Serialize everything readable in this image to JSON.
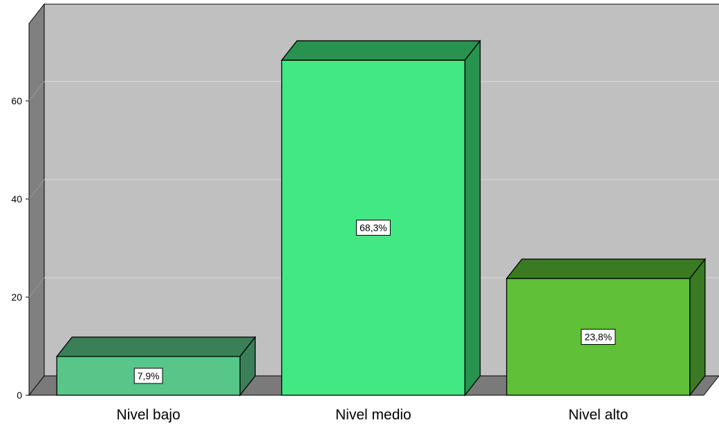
{
  "chart_data": {
    "type": "bar",
    "categories": [
      "Nivel bajo",
      "Nivel medio",
      "Nivel alto"
    ],
    "values": [
      7.9,
      68.3,
      23.8
    ],
    "data_labels": [
      "7,9%",
      "68,3%",
      "23,8%"
    ],
    "ylim": [
      0,
      70
    ],
    "yticks": [
      0,
      20,
      40,
      60
    ],
    "ytick_labels": [
      "0",
      "20",
      "40",
      "60"
    ],
    "grid": true,
    "three_d": true,
    "colors": {
      "back_wall": "#c0c0c0",
      "left_wall": "#808080",
      "floor": "#7a7a7a",
      "gridline": "#dddddd",
      "bars": [
        {
          "front": "#58c688",
          "top": "#3a7f58",
          "side": "#3a7f58"
        },
        {
          "front": "#42e882",
          "top": "#28934f",
          "side": "#28934f"
        },
        {
          "front": "#60c038",
          "top": "#3a7a22",
          "side": "#3a7a22"
        }
      ]
    }
  }
}
